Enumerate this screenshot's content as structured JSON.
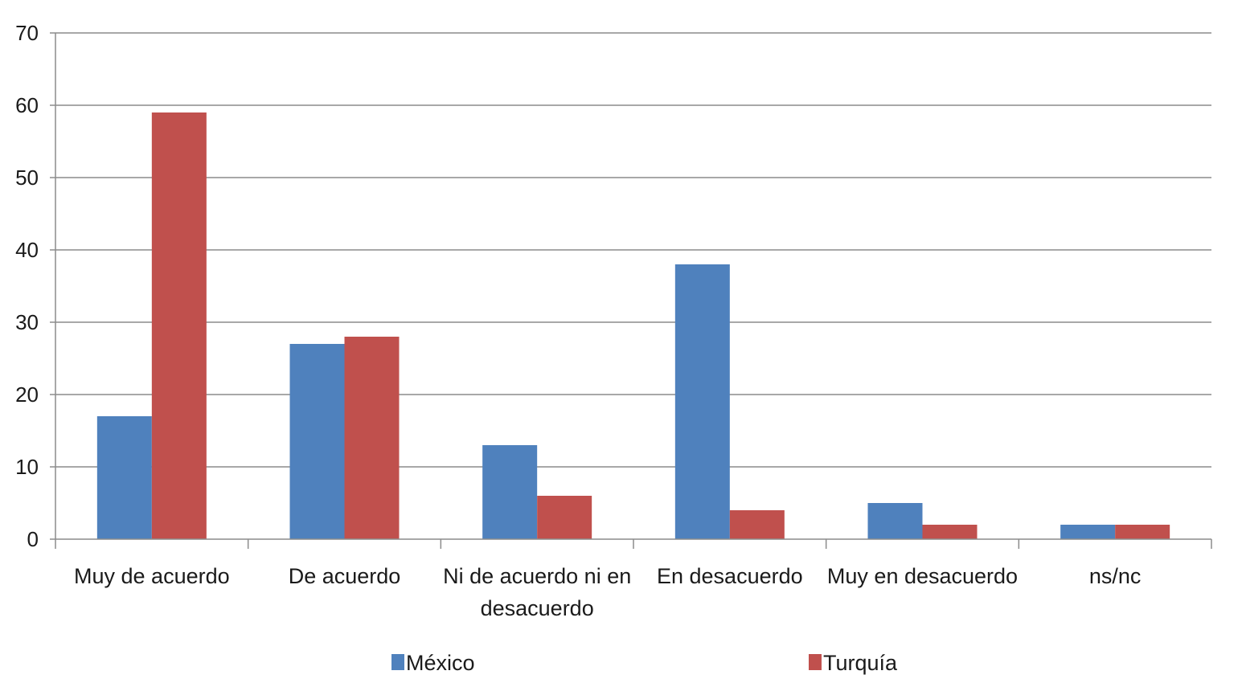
{
  "chart_data": {
    "type": "bar",
    "categories": [
      [
        "Muy de acuerdo"
      ],
      [
        "De acuerdo"
      ],
      [
        "Ni de acuerdo  ni en",
        "desacuerdo"
      ],
      [
        "En desacuerdo"
      ],
      [
        "Muy en desacuerdo"
      ],
      [
        "ns/nc"
      ]
    ],
    "series": [
      {
        "name": "México",
        "color": "#4f81bd",
        "values": [
          17,
          27,
          13,
          38,
          5,
          2
        ]
      },
      {
        "name": "Turquía",
        "color": "#c0504d",
        "values": [
          59,
          28,
          6,
          4,
          2,
          2
        ]
      }
    ],
    "ylim": [
      0,
      70
    ],
    "yticks": [
      0,
      10,
      20,
      30,
      40,
      50,
      60,
      70
    ],
    "grid": true,
    "legend_position": "bottom"
  }
}
